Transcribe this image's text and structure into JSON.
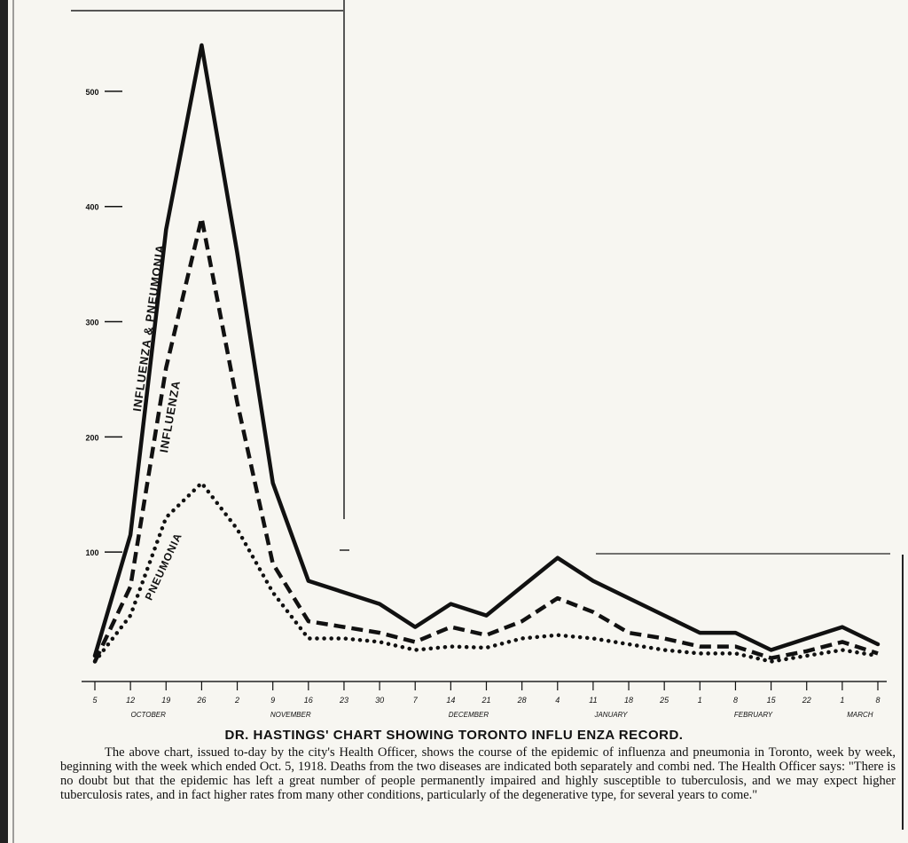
{
  "caption": {
    "title": "DR. HASTINGS' CHART SHOWING TORONTO INFLU ENZA RECORD.",
    "body": "The above chart, issued to-day by the city's Health Officer, shows the course of the epidemic of influenza and pneumonia in Toronto, week by week, beginning with the week which ended Oct. 5, 1918. Deaths from the two diseases are indicated both separately and combi ned. The Health Officer says: \"There is no doubt but that the epidemic has left a great number of people permanently impaired and highly susceptible to tuberculosis, and we may expect higher tuberculosis rates, and in fact higher rates from many other conditions, particularly of the degenerative type, for several years to come.\""
  },
  "colors": {
    "ink": "#111111",
    "paper": "#f7f6f1"
  },
  "chart_data": {
    "type": "line",
    "title": "DR. HASTINGS' CHART SHOWING TORONTO INFLU ENZA RECORD.",
    "ylim": [
      0,
      550
    ],
    "yticks": [
      {
        "value": 100,
        "label": "100"
      },
      {
        "value": 200,
        "label": "200"
      },
      {
        "value": 300,
        "label": "300"
      },
      {
        "value": 400,
        "label": "400"
      },
      {
        "value": 500,
        "label": "500"
      }
    ],
    "x": [
      "5",
      "12",
      "19",
      "26",
      "2",
      "9",
      "16",
      "23",
      "30",
      "7",
      "14",
      "21",
      "28",
      "4",
      "11",
      "18",
      "25",
      "1",
      "8",
      "15",
      "22",
      "1",
      "8"
    ],
    "x_month_labels": [
      {
        "label": "OCTOBER",
        "at_index": 1.5
      },
      {
        "label": "NOVEMBER",
        "at_index": 5.5
      },
      {
        "label": "DECEMBER",
        "at_index": 10.5
      },
      {
        "label": "JANUARY",
        "at_index": 14.5
      },
      {
        "label": "FEBRUARY",
        "at_index": 18.5
      },
      {
        "label": "MARCH",
        "at_index": 21.5
      }
    ],
    "series": [
      {
        "name": "INFLUENZA & PNEUMONIA",
        "style": "solid",
        "values": [
          10,
          115,
          380,
          540,
          360,
          160,
          75,
          65,
          55,
          35,
          55,
          45,
          70,
          95,
          75,
          60,
          45,
          30,
          30,
          15,
          25,
          35,
          20
        ]
      },
      {
        "name": "INFLUENZA",
        "style": "dashed",
        "values": [
          5,
          70,
          260,
          390,
          230,
          90,
          40,
          35,
          30,
          22,
          35,
          28,
          40,
          60,
          48,
          30,
          25,
          18,
          18,
          8,
          14,
          22,
          12
        ]
      },
      {
        "name": "PNEUMONIA",
        "style": "dotted",
        "values": [
          5,
          45,
          130,
          160,
          120,
          65,
          25,
          25,
          22,
          15,
          18,
          17,
          25,
          28,
          25,
          20,
          15,
          12,
          12,
          5,
          10,
          15,
          10
        ]
      }
    ]
  }
}
